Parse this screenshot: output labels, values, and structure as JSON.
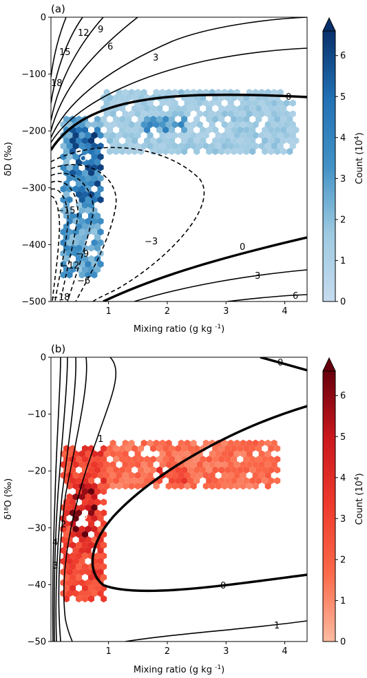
{
  "chart_data": [
    {
      "type": "heatmap",
      "panel_label": "(a)",
      "xlabel": "Mixing ratio (g kg$^{-1}$)",
      "ylabel": "δD (‰)",
      "xlim": [
        0.02,
        4.38
      ],
      "ylim": [
        -500,
        0
      ],
      "xticks": [
        1,
        2,
        3,
        4
      ],
      "yticks": [
        0,
        -100,
        -200,
        -300,
        -400,
        -500
      ],
      "colorbar": {
        "label": "Count (10^4)",
        "range": [
          0,
          6.6
        ],
        "ticks": [
          0,
          1,
          2,
          3,
          4,
          5,
          6
        ],
        "extend": "max",
        "cmap": "Blues",
        "low_color": "#c6dbef",
        "high_color": "#08306b"
      },
      "hexbin_regions": [
        {
          "x": [
            0.2,
            0.9
          ],
          "y": [
            -460,
            -170
          ],
          "level": 0.45
        },
        {
          "x": [
            0.9,
            4.2
          ],
          "y": [
            -240,
            -130
          ],
          "level": 0.22
        },
        {
          "x": [
            0.35,
            0.9
          ],
          "y": [
            -330,
            -190
          ],
          "level": 0.7
        },
        {
          "x": [
            1.6,
            2.3
          ],
          "y": [
            -200,
            -170
          ],
          "level": 0.5
        }
      ],
      "median_point": {
        "x": 0.57,
        "y": -248
      },
      "contours": [
        {
          "level": 0,
          "style": "solid-bold",
          "label": "0"
        },
        {
          "level": 3,
          "style": "solid",
          "label": "3"
        },
        {
          "level": 6,
          "style": "solid",
          "label": "6"
        },
        {
          "level": 9,
          "style": "solid",
          "label": "9"
        },
        {
          "level": 12,
          "style": "solid",
          "label": "12"
        },
        {
          "level": 15,
          "style": "solid",
          "label": "15"
        },
        {
          "level": 18,
          "style": "solid",
          "label": "18"
        },
        {
          "level": -3,
          "style": "dashed",
          "label": "−3"
        },
        {
          "level": -6,
          "style": "dashed",
          "label": "−6"
        },
        {
          "level": -9,
          "style": "dashed",
          "label": "−9"
        },
        {
          "level": -12,
          "style": "dashed",
          "label": "−12"
        },
        {
          "level": -15,
          "style": "dashed",
          "label": "−15"
        },
        {
          "level": -18,
          "style": "dashed",
          "label": "−18"
        }
      ]
    },
    {
      "type": "heatmap",
      "panel_label": "(b)",
      "xlabel": "Mixing ratio (g kg$^{-1}$)",
      "ylabel": "δ¹⁸O (‰)",
      "xlim": [
        0.02,
        4.38
      ],
      "ylim": [
        -50,
        0
      ],
      "xticks": [
        1,
        2,
        3,
        4
      ],
      "yticks": [
        0,
        -10,
        -20,
        -30,
        -40,
        -50
      ],
      "colorbar": {
        "label": "Count (10^4)",
        "range": [
          0,
          6.6
        ],
        "ticks": [
          0,
          1,
          2,
          3,
          4,
          5,
          6
        ],
        "extend": "max",
        "cmap": "Reds",
        "low_color": "#fcbba1",
        "high_color": "#67000d"
      },
      "hexbin_regions": [
        {
          "x": [
            0.2,
            0.95
          ],
          "y": [
            -43,
            -16
          ],
          "level": 0.45
        },
        {
          "x": [
            0.95,
            3.9
          ],
          "y": [
            -23,
            -15
          ],
          "level": 0.25
        },
        {
          "x": [
            0.35,
            0.8
          ],
          "y": [
            -32,
            -22
          ],
          "level": 0.75
        },
        {
          "x": [
            1.8,
            2.3
          ],
          "y": [
            -22,
            -19
          ],
          "level": 0.5
        }
      ],
      "median_point": {
        "x": 0.58,
        "y": -28
      },
      "contours": [
        {
          "level": 0,
          "style": "solid-bold",
          "label": "0"
        },
        {
          "level": 1,
          "style": "solid",
          "label": "1"
        },
        {
          "level": 2,
          "style": "solid",
          "label": "2"
        },
        {
          "level": 3,
          "style": "solid",
          "label": "3"
        },
        {
          "level": 4,
          "style": "solid",
          "label": "4"
        }
      ]
    }
  ]
}
